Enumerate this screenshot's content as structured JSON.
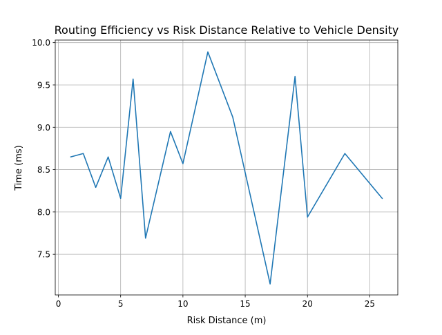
{
  "chart_data": {
    "type": "line",
    "title": "Routing Efficiency vs Risk Distance Relative to Vehicle Density",
    "xlabel": "Risk Distance (m)",
    "ylabel": "Time (ms)",
    "xlim": [
      -0.25,
      27.25
    ],
    "ylim": [
      7.02,
      10.03
    ],
    "x_ticks": [
      0,
      5,
      10,
      15,
      20,
      25
    ],
    "y_ticks": [
      7.5,
      8.0,
      8.5,
      9.0,
      9.5,
      10.0
    ],
    "x_tick_labels": [
      "0",
      "5",
      "10",
      "15",
      "20",
      "25"
    ],
    "y_tick_labels": [
      "7.5",
      "8.0",
      "8.5",
      "9.0",
      "9.5",
      "10.0"
    ],
    "grid": true,
    "series": [
      {
        "color": "#1f77b4",
        "x": [
          1,
          2,
          3,
          4,
          5,
          6,
          7,
          9,
          10,
          12,
          14,
          17,
          19,
          20,
          23,
          26
        ],
        "y": [
          8.65,
          8.69,
          8.29,
          8.65,
          8.16,
          9.57,
          7.69,
          8.95,
          8.57,
          9.89,
          9.12,
          7.15,
          9.6,
          7.94,
          8.69,
          8.16
        ]
      }
    ]
  }
}
